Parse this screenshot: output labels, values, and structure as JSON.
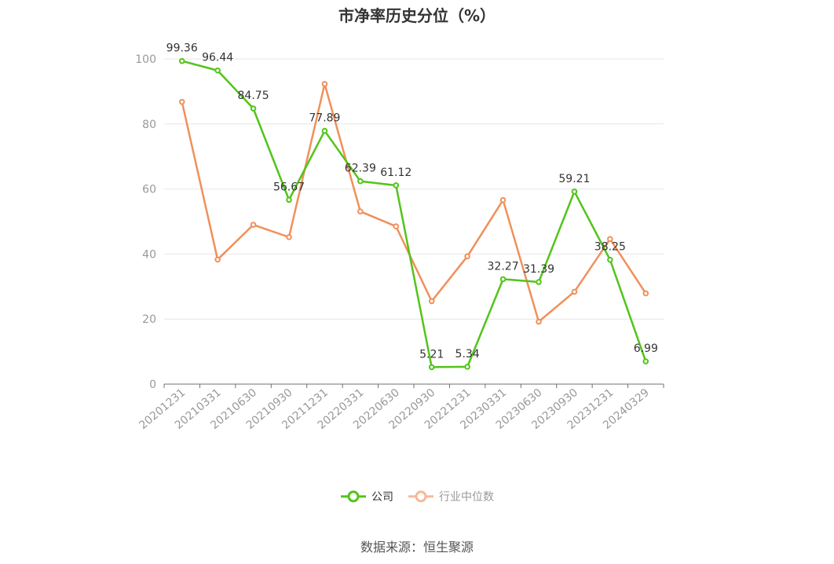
{
  "chart_data": {
    "type": "line",
    "title": "市净率历史分位（%）",
    "x": [
      "20201231",
      "20210331",
      "20210630",
      "20210930",
      "20211231",
      "20220331",
      "20220630",
      "20220930",
      "20221231",
      "20230331",
      "20230630",
      "20230930",
      "20231231",
      "20240329"
    ],
    "series": [
      {
        "name": "公司",
        "color": "#52c41a",
        "values": [
          99.36,
          96.44,
          84.75,
          56.67,
          77.89,
          62.39,
          61.12,
          5.21,
          5.34,
          32.27,
          31.39,
          59.21,
          38.25,
          6.99
        ],
        "labels": [
          "99.36",
          "96.44",
          "84.75",
          "56.67",
          "77.89",
          "62.39",
          "61.12",
          "5.21",
          "5.34",
          "32.27",
          "31.39",
          "59.21",
          "38.25",
          "6.99"
        ]
      },
      {
        "name": "行业中位数",
        "color": "#f0905a",
        "values": [
          86.8,
          38.3,
          49.0,
          45.2,
          92.3,
          53.1,
          48.5,
          25.5,
          39.3,
          56.6,
          19.2,
          28.4,
          44.6,
          27.9
        ]
      }
    ],
    "yticks": [
      "0",
      "20",
      "40",
      "60",
      "80",
      "100"
    ],
    "ylim": [
      0,
      100
    ],
    "grid": true,
    "legend": "bottom-center"
  },
  "source": "数据来源：恒生聚源"
}
